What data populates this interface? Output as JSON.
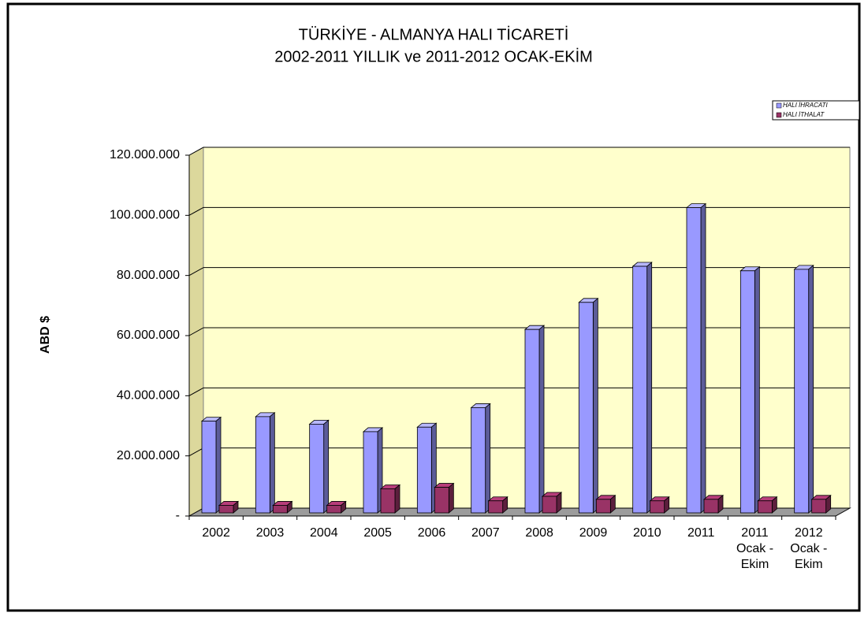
{
  "chart_data": {
    "type": "bar3d",
    "title": "TÜRKİYE  - ALMANYA HALI TİCARETİ",
    "subtitle": "2002-2011 YILLIK  ve 2011-2012 OCAK-EKİM",
    "y_label": "ABD $",
    "categories": [
      "2002",
      "2003",
      "2004",
      "2005",
      "2006",
      "2007",
      "2008",
      "2009",
      "2010",
      "2011",
      "2011 Ocak - Ekim",
      "2012 Ocak - Ekim"
    ],
    "series": [
      {
        "name": "HALI İHRACATI",
        "color": "#9999ff",
        "values": [
          30500000,
          32000000,
          29500000,
          27000000,
          28500000,
          35000000,
          61000000,
          70000000,
          82000000,
          101500000,
          80500000,
          81000000
        ]
      },
      {
        "name": "HALI İTHALAT",
        "color": "#993366",
        "values": [
          2500000,
          2500000,
          2500000,
          8000000,
          8500000,
          4000000,
          5500000,
          4500000,
          4000000,
          4500000,
          4000000,
          4500000
        ]
      }
    ],
    "ylim": [
      0,
      120000000
    ],
    "yticks": [
      {
        "value": 0,
        "label": "-"
      },
      {
        "value": 20000000,
        "label": "20.000.000"
      },
      {
        "value": 40000000,
        "label": "40.000.000"
      },
      {
        "value": 60000000,
        "label": "60.000.000"
      },
      {
        "value": 80000000,
        "label": "80.000.000"
      },
      {
        "value": 100000000,
        "label": "100.000.000"
      },
      {
        "value": 120000000,
        "label": "120.000.000"
      }
    ],
    "grid": true,
    "legend": "top-right"
  }
}
